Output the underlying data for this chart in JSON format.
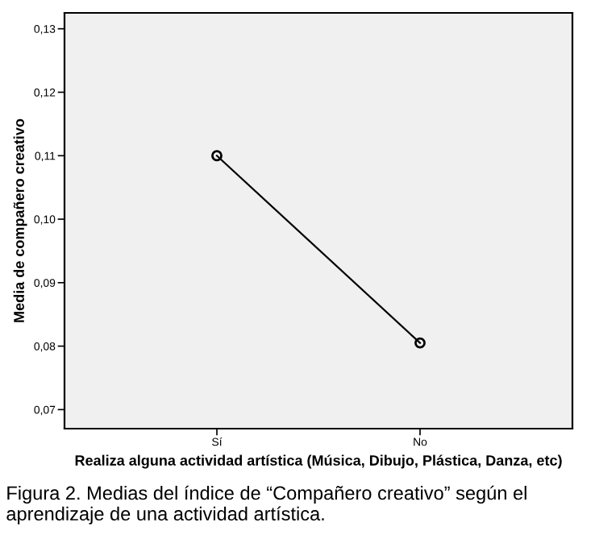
{
  "chart_data": {
    "type": "line",
    "categories": [
      "Sí",
      "No"
    ],
    "values": [
      0.11,
      0.0805
    ],
    "color": "#000000",
    "marker": "circle",
    "ylim": [
      0.067,
      0.1325
    ],
    "yticks": [
      {
        "value": 0.07,
        "label": "0,07"
      },
      {
        "value": 0.08,
        "label": "0,08"
      },
      {
        "value": 0.09,
        "label": "0,09"
      },
      {
        "value": 0.1,
        "label": "0,10"
      },
      {
        "value": 0.11,
        "label": "0,11"
      },
      {
        "value": 0.12,
        "label": "0,12"
      },
      {
        "value": 0.13,
        "label": "0,13"
      }
    ],
    "xlabel": "Realiza alguna actividad artística (Música, Dibujo, Plástica, Danza, etc)",
    "ylabel": "Media de compañero creativo",
    "grid": false,
    "annotations": [
      "Figura 2. Medias del índice de “Compañero creativo” según el aprendizaje de una actividad artística."
    ]
  }
}
